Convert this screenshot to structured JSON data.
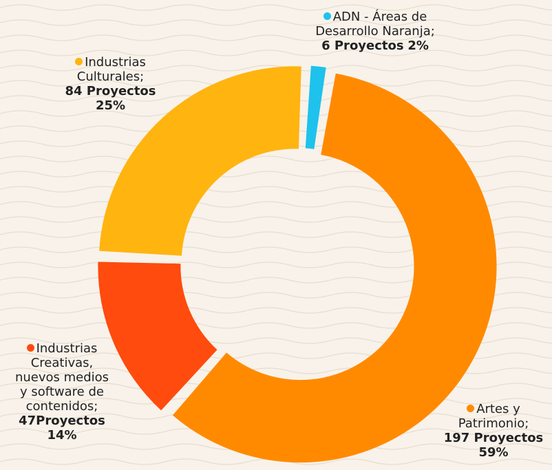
{
  "chart_data": {
    "type": "donut",
    "categories": [
      "ADN - Áreas de Desarrollo Naranja;",
      "Artes y Patrimonio;",
      "Industrias Creativas, nuevos medios y software de contenidos;",
      "Industrias Culturales;"
    ],
    "values": [
      6,
      197,
      47,
      84
    ],
    "value_labels": [
      "6 Proyectos",
      "197 Proyectos",
      "47Proyectos",
      "84 Proyectos"
    ],
    "percents": [
      2,
      59,
      14,
      25
    ],
    "percent_labels": [
      "2%",
      "59%",
      "14%",
      "25%"
    ],
    "colors": [
      "#1ec2ec",
      "#ff8a00",
      "#ff4b0d",
      "#ffb40f"
    ]
  }
}
